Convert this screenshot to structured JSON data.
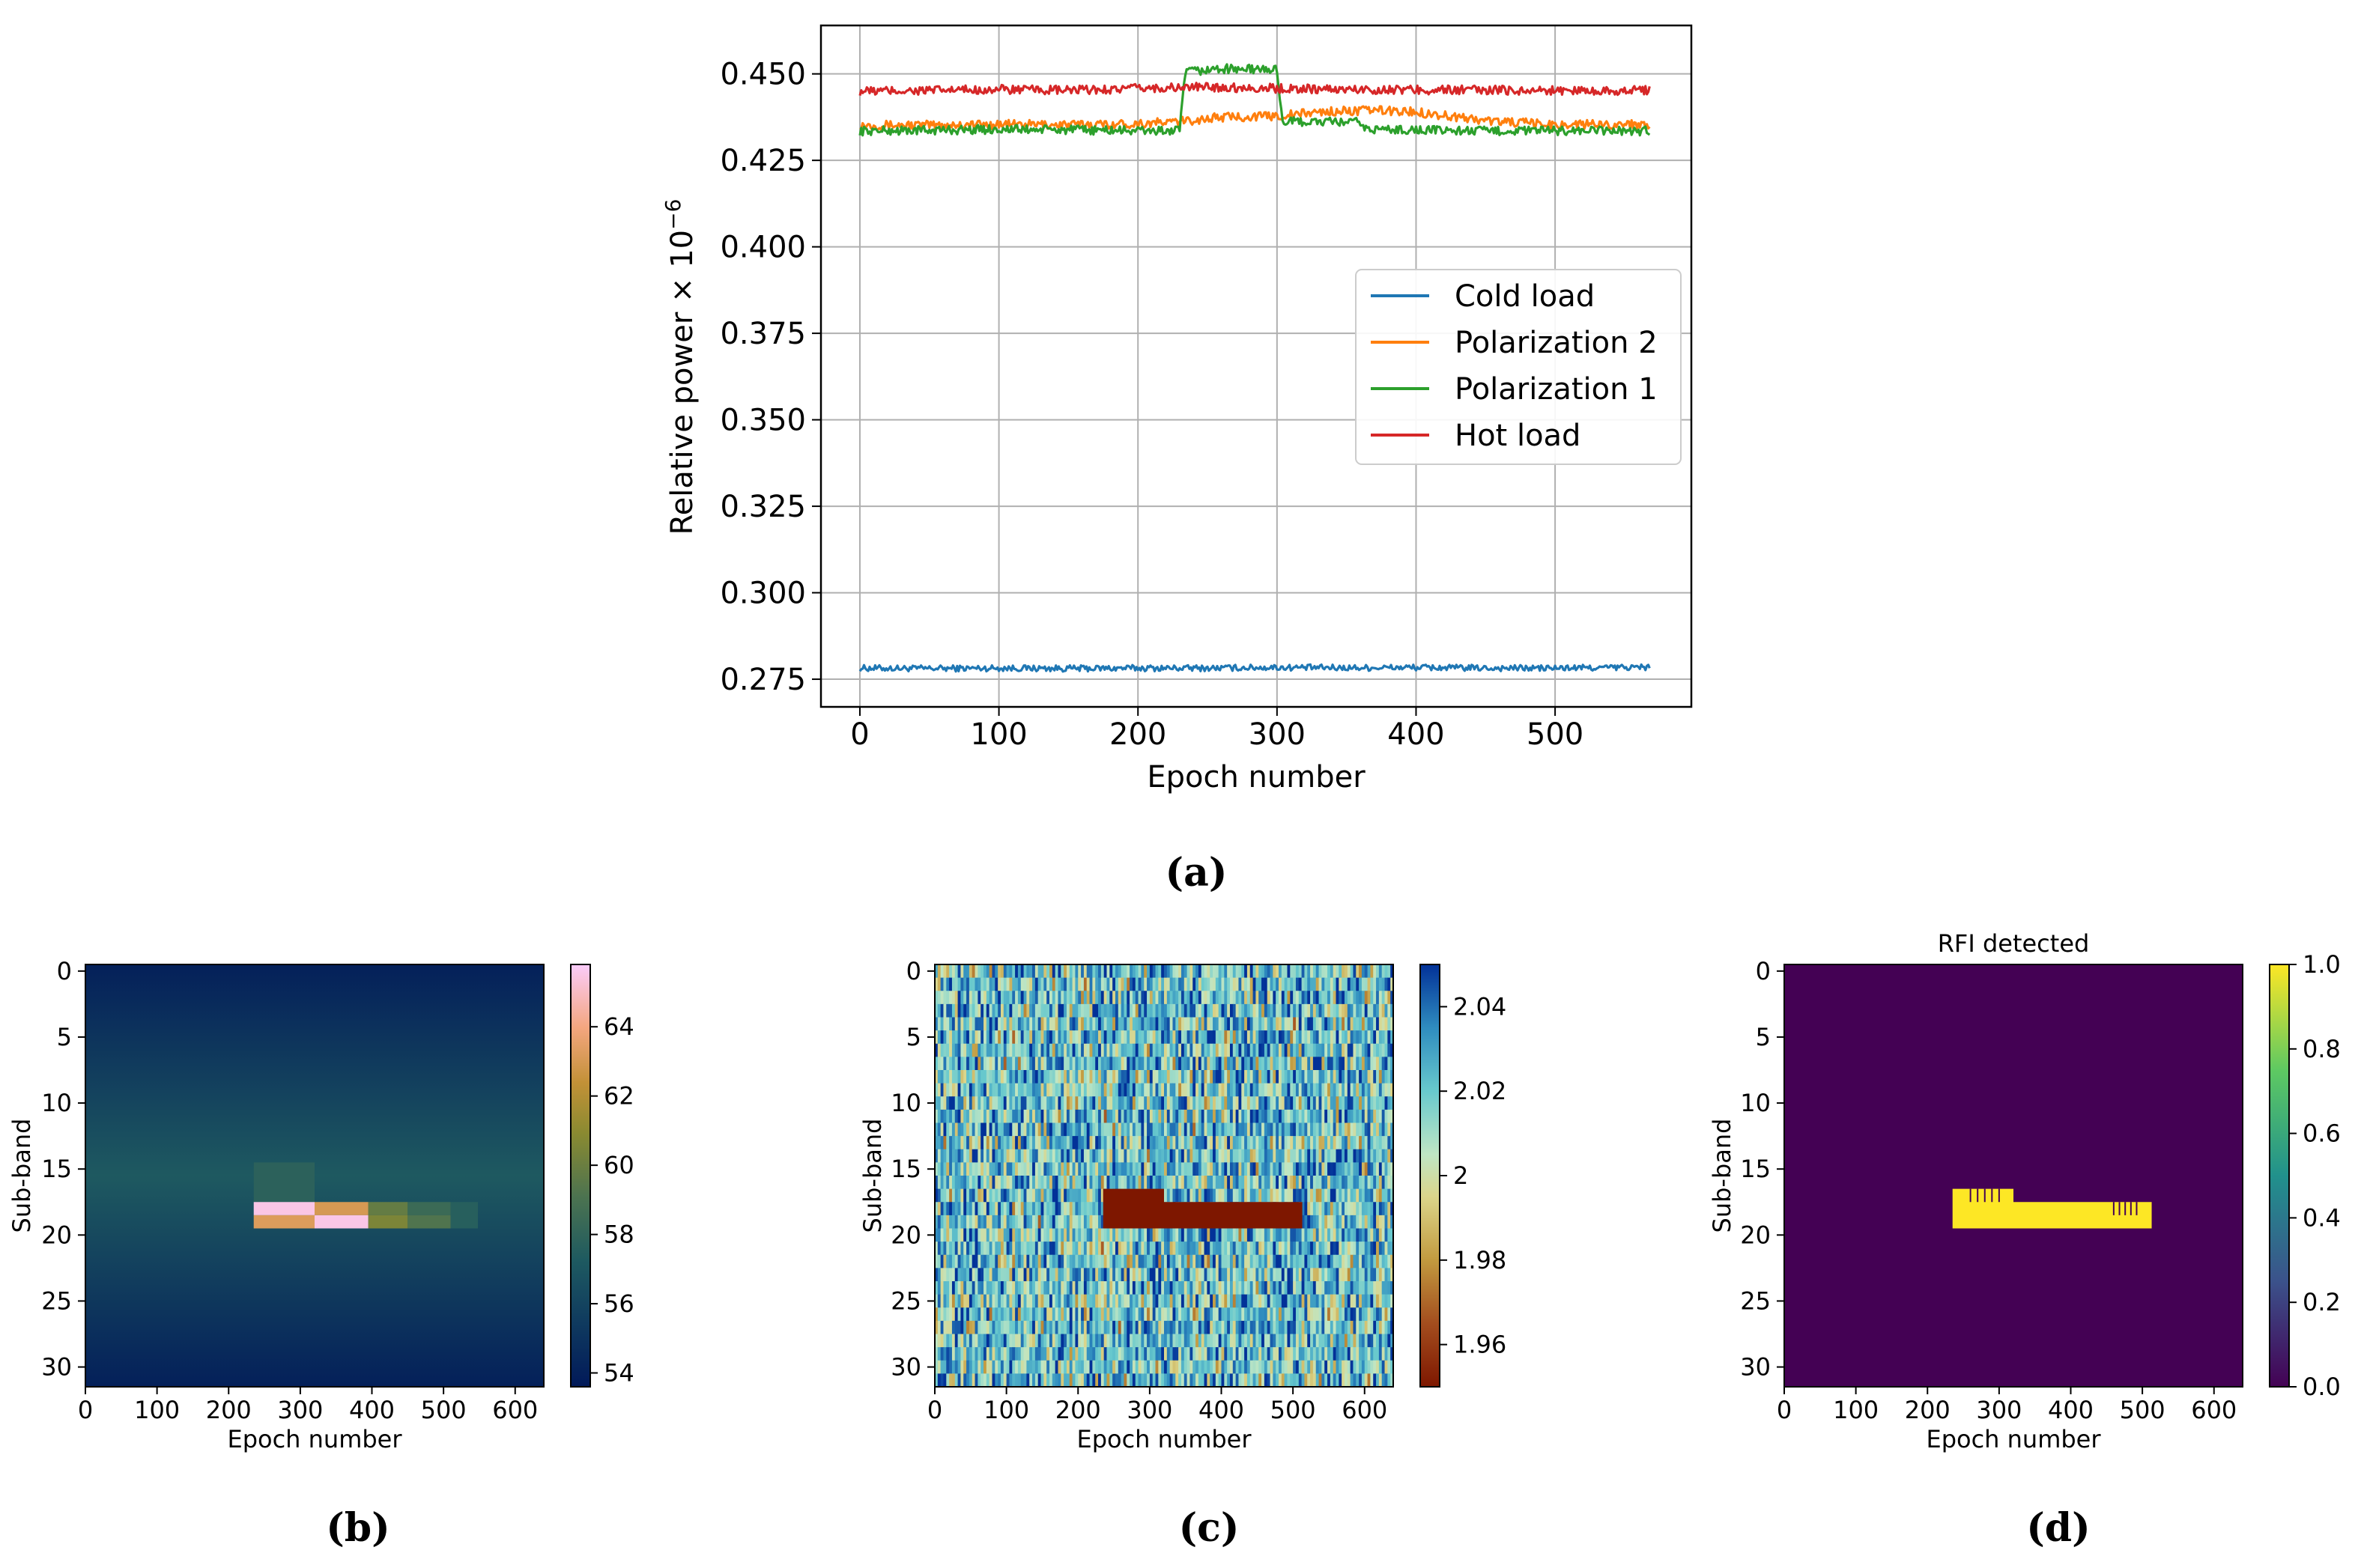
{
  "chart_data": [
    {
      "panel": "(a)",
      "type": "line",
      "title": "",
      "xlabel": "Epoch number",
      "ylabel": "Relative power × 10",
      "ylabel_exponent": "−6",
      "xlim": [
        -28,
        598
      ],
      "ylim": [
        0.267,
        0.464
      ],
      "xticks": [
        0,
        100,
        200,
        300,
        400,
        500
      ],
      "xtick_labels": [
        "0",
        "100",
        "200",
        "300",
        "400",
        "500"
      ],
      "yticks": [
        0.275,
        0.3,
        0.325,
        0.35,
        0.375,
        0.4,
        0.425,
        0.45
      ],
      "ytick_labels": [
        "0.275",
        "0.300",
        "0.325",
        "0.350",
        "0.375",
        "0.400",
        "0.425",
        "0.450"
      ],
      "grid": true,
      "legend_position": "center-right",
      "legend": [
        "Cold load",
        "Polarization 2",
        "Polarization 1",
        "Hot load"
      ],
      "series": [
        {
          "name": "Cold load",
          "color": "#1f77b4",
          "x": [
            0,
            50,
            100,
            150,
            200,
            250,
            300,
            350,
            400,
            450,
            500,
            568
          ],
          "values": [
            0.2782,
            0.2781,
            0.2782,
            0.2781,
            0.2782,
            0.2782,
            0.2784,
            0.2783,
            0.2784,
            0.2782,
            0.2782,
            0.2785
          ]
        },
        {
          "name": "Polarization 2",
          "color": "#ff7f0e",
          "x": [
            0,
            50,
            100,
            150,
            200,
            230,
            260,
            300,
            330,
            370,
            400,
            450,
            500,
            568
          ],
          "values": [
            0.4352,
            0.4352,
            0.4354,
            0.4353,
            0.4356,
            0.4362,
            0.4375,
            0.4378,
            0.439,
            0.4395,
            0.439,
            0.4365,
            0.4353,
            0.4355
          ]
        },
        {
          "name": "Polarization 1",
          "color": "#2ca02c",
          "x": [
            0,
            50,
            100,
            150,
            200,
            230,
            234,
            260,
            300,
            304,
            360,
            364,
            400,
            450,
            500,
            568
          ],
          "values": [
            0.4335,
            0.4337,
            0.434,
            0.4338,
            0.4336,
            0.4335,
            0.4505,
            0.4515,
            0.4512,
            0.4362,
            0.436,
            0.434,
            0.4338,
            0.4335,
            0.4336,
            0.4335
          ]
        },
        {
          "name": "Hot load",
          "color": "#d62728",
          "x": [
            0,
            50,
            100,
            150,
            200,
            250,
            300,
            350,
            400,
            450,
            500,
            568
          ],
          "values": [
            0.445,
            0.4452,
            0.4455,
            0.4452,
            0.4458,
            0.4462,
            0.4458,
            0.4455,
            0.4454,
            0.4453,
            0.4452,
            0.4452
          ]
        }
      ]
    },
    {
      "panel": "(b)",
      "type": "heatmap",
      "title": "",
      "xlabel": "Epoch number",
      "ylabel": "Sub-band",
      "xticks": [
        0,
        100,
        200,
        300,
        400,
        500,
        600
      ],
      "yticks": [
        0,
        5,
        10,
        15,
        20,
        25,
        30
      ],
      "xlim": [
        0,
        640
      ],
      "ylim": [
        31.5,
        -0.5
      ],
      "colormap": "batlow",
      "colorbar_range": [
        53.6,
        65.8
      ],
      "colorbar_ticks": [
        54,
        56,
        58,
        60,
        62,
        64
      ],
      "baseline_center": 57.2,
      "baseline_edges": 54.0,
      "features": [
        {
          "x": [
            235,
            320
          ],
          "y": [
            15,
            18
          ],
          "value": 57.8
        },
        {
          "x": [
            235,
            320
          ],
          "y": [
            18,
            19
          ],
          "value": 65.5
        },
        {
          "x": [
            235,
            320
          ],
          "y": [
            19,
            20
          ],
          "value": 63.2
        },
        {
          "x": [
            320,
            395
          ],
          "y": [
            18,
            19
          ],
          "value": 63.0
        },
        {
          "x": [
            320,
            395
          ],
          "y": [
            19,
            20
          ],
          "value": 65.5
        },
        {
          "x": [
            395,
            450
          ],
          "y": [
            18,
            19
          ],
          "value": 59.8
        },
        {
          "x": [
            395,
            450
          ],
          "y": [
            19,
            20
          ],
          "value": 60.5
        },
        {
          "x": [
            450,
            510
          ],
          "y": [
            18,
            19
          ],
          "value": 58.4
        },
        {
          "x": [
            450,
            510
          ],
          "y": [
            19,
            20
          ],
          "value": 59.2
        },
        {
          "x": [
            510,
            548
          ],
          "y": [
            18,
            20
          ],
          "value": 57.6
        }
      ]
    },
    {
      "panel": "(c)",
      "type": "heatmap",
      "title": "",
      "xlabel": "Epoch number",
      "ylabel": "Sub-band",
      "xticks": [
        0,
        100,
        200,
        300,
        400,
        500,
        600
      ],
      "yticks": [
        0,
        5,
        10,
        15,
        20,
        25,
        30
      ],
      "xlim": [
        0,
        640
      ],
      "ylim": [
        31.5,
        -0.5
      ],
      "colormap": "roma",
      "colorbar_range": [
        1.95,
        2.05
      ],
      "colorbar_ticks": [
        1.96,
        1.98,
        2.0,
        2.02,
        2.04
      ],
      "features": [
        {
          "x": [
            235,
            320
          ],
          "y": [
            16.5,
            19.5
          ],
          "value": 1.95
        },
        {
          "x": [
            320,
            513
          ],
          "y": [
            17.5,
            19.5
          ],
          "value": 1.95
        }
      ]
    },
    {
      "panel": "(d)",
      "type": "heatmap",
      "title": "RFI detected",
      "xlabel": "Epoch number",
      "ylabel": "Sub-band",
      "xticks": [
        0,
        100,
        200,
        300,
        400,
        500,
        600
      ],
      "yticks": [
        0,
        5,
        10,
        15,
        20,
        25,
        30
      ],
      "xlim": [
        0,
        640
      ],
      "ylim": [
        31.5,
        -0.5
      ],
      "colormap": "viridis",
      "colorbar_range": [
        0.0,
        1.0
      ],
      "colorbar_ticks": [
        0.0,
        0.2,
        0.4,
        0.6,
        0.8,
        1.0
      ],
      "colorbar_tick_labels": [
        "0.0",
        "0.2",
        "0.4",
        "0.6",
        "0.8",
        "1.0"
      ],
      "features": [
        {
          "x": [
            235,
            320
          ],
          "y": [
            16.5,
            19.5
          ],
          "value": 1.0
        },
        {
          "x": [
            320,
            513
          ],
          "y": [
            17.5,
            19.5
          ],
          "value": 1.0
        }
      ],
      "gap_lines_x": [
        260,
        270,
        280,
        290,
        300,
        460,
        468,
        476,
        484,
        492
      ]
    }
  ],
  "labels": {
    "a": "(a)",
    "b": "(b)",
    "c": "(c)",
    "d": "(d)"
  }
}
